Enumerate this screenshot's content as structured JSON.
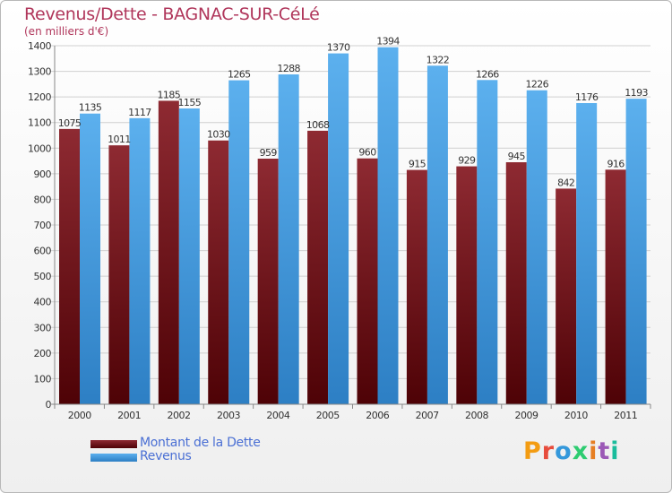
{
  "header": {
    "title": "Revenus/Dette - BAGNAC-SUR-CéLé",
    "subtitle": "(en milliers d'€)"
  },
  "brand": {
    "text": "Proxiti",
    "colors": [
      "#f39c12",
      "#e74c3c",
      "#3498db",
      "#2ecc71",
      "#e67e22",
      "#9b59b6",
      "#1abc9c"
    ]
  },
  "legend": [
    {
      "label": "Montant de la Dette",
      "color": "#6b1016"
    },
    {
      "label": "Revenus",
      "color": "#3f97dc"
    }
  ],
  "chart_data": {
    "type": "bar",
    "categories": [
      "2000",
      "2001",
      "2002",
      "2003",
      "2004",
      "2005",
      "2006",
      "2007",
      "2008",
      "2009",
      "2010",
      "2011"
    ],
    "series": [
      {
        "name": "Montant de la Dette",
        "values": [
          1075,
          1011,
          1185,
          1030,
          959,
          1068,
          960,
          915,
          929,
          945,
          842,
          916
        ],
        "labels": [
          "1075",
          "1011",
          "1185",
          "1030",
          "959",
          "1068",
          "960",
          "915",
          "929",
          "945",
          "842",
          "916"
        ],
        "color": "#7a1a22"
      },
      {
        "name": "Revenus",
        "values": [
          1135,
          1117,
          1155,
          1265,
          1288,
          1370,
          1394,
          1322,
          1266,
          1226,
          1176,
          1193
        ],
        "labels": [
          "1135",
          "1117",
          "1155",
          "1265",
          "1288",
          "1370",
          "1394",
          "1322",
          "1266",
          "1226",
          "1176",
          "1193"
        ],
        "color": "#4aa3e6"
      }
    ],
    "ylim": [
      0,
      1400
    ],
    "yticks": [
      0,
      100,
      200,
      300,
      400,
      500,
      600,
      700,
      800,
      900,
      1000,
      1100,
      1200,
      1300,
      1400
    ],
    "grid": true
  }
}
